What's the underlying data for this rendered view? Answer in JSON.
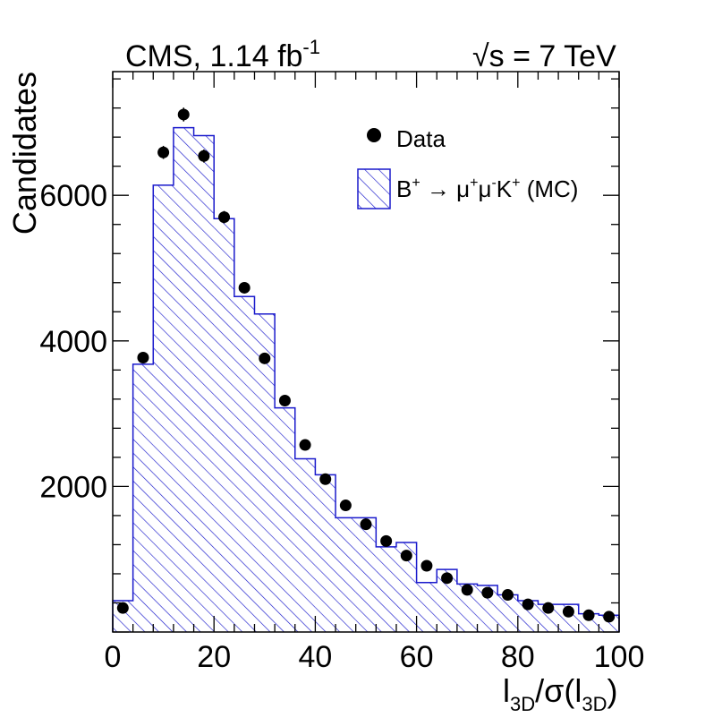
{
  "chart_data": {
    "type": "bar",
    "title_left": {
      "main": "CMS, 1.14 fb",
      "sup": "-1"
    },
    "title_right": {
      "root": "√",
      "s": "s",
      "rest": " = 7 TeV"
    },
    "ylabel": "Candidates",
    "xlabel": {
      "l": "l",
      "sub": "3D",
      "slash": "/σ(l",
      "sub2": "3D",
      "close": ")"
    },
    "xlim": [
      0,
      100
    ],
    "ylim": [
      0,
      7700
    ],
    "x_ticks": [
      0,
      20,
      40,
      60,
      80,
      100
    ],
    "x_tick_labels": [
      "0",
      "20",
      "40",
      "60",
      "80",
      "100"
    ],
    "y_ticks": [
      2000,
      4000,
      6000
    ],
    "y_tick_labels": [
      "2000",
      "4000",
      "6000"
    ],
    "bin_width": 4,
    "mc_histogram": {
      "name": "B+ → μ+μ-K+ (MC)",
      "color": "#1a1acc",
      "bin_edges": [
        0,
        4,
        8,
        12,
        16,
        20,
        24,
        28,
        32,
        36,
        40,
        44,
        48,
        52,
        56,
        60,
        64,
        68,
        72,
        76,
        80,
        84,
        88,
        92,
        96,
        100
      ],
      "values": [
        430,
        3680,
        6140,
        6930,
        6820,
        5680,
        4610,
        4370,
        3080,
        2380,
        2160,
        1570,
        1570,
        1170,
        1230,
        680,
        860,
        660,
        640,
        510,
        430,
        380,
        380,
        250,
        230
      ]
    },
    "data_points": {
      "name": "Data",
      "color": "#000000",
      "x": [
        2,
        6,
        10,
        14,
        18,
        22,
        26,
        30,
        34,
        38,
        42,
        46,
        50,
        54,
        58,
        62,
        66,
        70,
        74,
        78,
        82,
        86,
        90,
        94,
        98
      ],
      "y": [
        330,
        3770,
        6590,
        7110,
        6540,
        5700,
        4730,
        3760,
        3180,
        2570,
        2100,
        1740,
        1480,
        1250,
        1050,
        910,
        740,
        580,
        540,
        510,
        380,
        330,
        280,
        230,
        210
      ],
      "err": [
        25,
        70,
        90,
        95,
        90,
        85,
        75,
        70,
        65,
        60,
        55,
        50,
        45,
        40,
        38,
        35,
        32,
        28,
        27,
        26,
        22,
        20,
        19,
        17,
        16
      ]
    },
    "legend": {
      "position": "top-right",
      "entries": [
        {
          "label": "Data",
          "marker": "circle"
        },
        {
          "label_parts": {
            "B": "B",
            "sup1": "+",
            "arrow": " → μ",
            "sup2": "+",
            "mu": "μ",
            "sup3": "-",
            "K": "K",
            "sup4": "+",
            "mc": " (MC)"
          },
          "marker": "hatched-box"
        }
      ]
    }
  }
}
